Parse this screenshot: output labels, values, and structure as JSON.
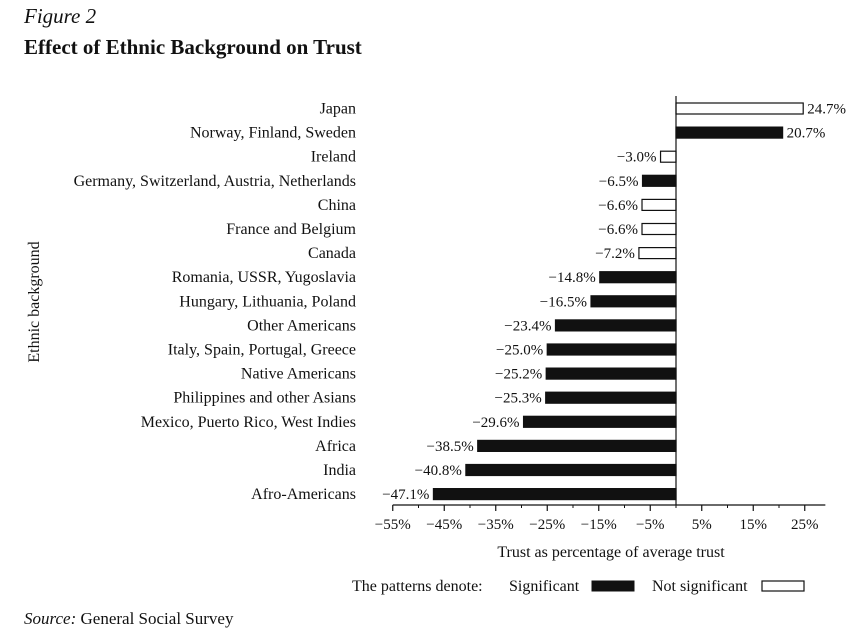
{
  "figure": {
    "label": "Figure 2",
    "title": "Effect of Ethnic Background on Trust"
  },
  "source": {
    "label": "Source:",
    "text": " General Social Survey"
  },
  "legend": {
    "prefix": "The patterns denote:",
    "significant": "Significant",
    "not_significant": "Not significant"
  },
  "colors": {
    "significant": "#111111",
    "not_significant": "#ffffff",
    "outline": "#111111"
  },
  "chart_data": {
    "type": "bar",
    "orientation": "horizontal",
    "xlabel": "Trust as percentage of average trust",
    "ylabel": "Ethnic background",
    "xlim": [
      -55,
      29
    ],
    "xticks": [
      -55,
      -45,
      -35,
      -25,
      -15,
      -5,
      5,
      15,
      25
    ],
    "xtick_labels": [
      "−55%",
      "−45%",
      "−35%",
      "−25%",
      "−15%",
      "−5%",
      "5%",
      "15%",
      "25%"
    ],
    "categories": [
      "Japan",
      "Norway, Finland, Sweden",
      "Ireland",
      "Germany, Switzerland, Austria, Netherlands",
      "China",
      "France and Belgium",
      "Canada",
      "Romania, USSR, Yugoslavia",
      "Hungary, Lithuania, Poland",
      "Other Americans",
      "Italy, Spain, Portugal, Greece",
      "Native Americans",
      "Philippines and other Asians",
      "Mexico, Puerto Rico, West Indies",
      "Africa",
      "India",
      "Afro-Americans"
    ],
    "values": [
      24.7,
      20.7,
      -3.0,
      -6.5,
      -6.6,
      -6.6,
      -7.2,
      -14.8,
      -16.5,
      -23.4,
      -25.0,
      -25.2,
      -25.3,
      -29.6,
      -38.5,
      -40.8,
      -47.1
    ],
    "value_labels": [
      "24.7%",
      "20.7%",
      "−3.0%",
      "−6.5%",
      "−6.6%",
      "−6.6%",
      "−7.2%",
      "−14.8%",
      "−16.5%",
      "−23.4%",
      "−25.0%",
      "−25.2%",
      "−25.3%",
      "−29.6%",
      "−38.5%",
      "−40.8%",
      "−47.1%"
    ],
    "significant": [
      false,
      true,
      false,
      true,
      false,
      false,
      false,
      true,
      true,
      true,
      true,
      true,
      true,
      true,
      true,
      true,
      true
    ],
    "grid": false,
    "legend_position": "bottom"
  }
}
